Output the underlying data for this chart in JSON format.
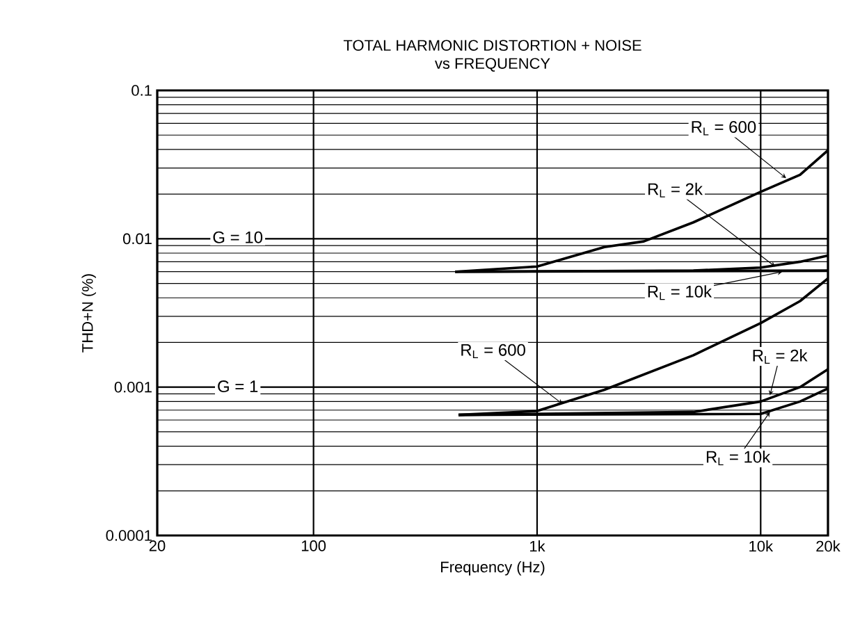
{
  "chart_data": {
    "type": "line",
    "title": "TOTAL HARMONIC DISTORTION + NOISE",
    "subtitle": "vs FREQUENCY",
    "xlabel": "Frequency (Hz)",
    "ylabel": "THD+N (%)",
    "log": "xy",
    "grid": true,
    "line_style": "solid",
    "marker": "none",
    "xlim": [
      20,
      20000
    ],
    "ylim": [
      0.0001,
      0.1
    ],
    "xticks": [
      20,
      {
        "value": 100,
        "label": "100"
      },
      {
        "value": 1000,
        "label": "1k"
      },
      {
        "value": 10000,
        "label": "10k"
      },
      {
        "value": 20000,
        "label": "20k"
      }
    ],
    "yticks": [
      0.0001,
      0.001,
      0.01,
      0.1
    ],
    "series": [
      {
        "color": "#000000",
        "x": [
          430,
          1000,
          2000,
          3000,
          5000,
          10000,
          15000,
          20000
        ],
        "values": [
          0.006,
          0.0065,
          0.0088,
          0.0096,
          0.0129,
          0.0207,
          0.027,
          0.0395
        ]
      },
      {
        "color": "#000000",
        "x": [
          430,
          5000,
          10000,
          15000,
          20000
        ],
        "values": [
          0.006,
          0.0061,
          0.0064,
          0.007,
          0.0077
        ]
      },
      {
        "color": "#000000",
        "x": [
          430,
          20000
        ],
        "values": [
          0.006,
          0.0061
        ]
      },
      {
        "color": "#000000",
        "x": [
          445,
          1000,
          2000,
          5000,
          10000,
          15000,
          20000
        ],
        "values": [
          0.00065,
          0.00069,
          0.00096,
          0.00164,
          0.0027,
          0.0038,
          0.0054
        ]
      },
      {
        "color": "#000000",
        "x": [
          445,
          5000,
          10000,
          15000,
          20000
        ],
        "values": [
          0.00065,
          0.00068,
          0.0008,
          0.001,
          0.00132
        ]
      },
      {
        "color": "#000000",
        "x": [
          445,
          10000,
          15000,
          20000
        ],
        "values": [
          0.00065,
          0.00066,
          0.0008,
          0.00098
        ]
      }
    ],
    "annotations": [
      "G = 10",
      "G = 1",
      {
        "text": "R$_{L}$ = 600",
        "x": 13000,
        "y": 0.0256
      },
      {
        "text": "R$_{L}$ = 2k",
        "x": 11600,
        "y": 0.0065
      },
      {
        "text": "R$_{L}$ = 10k",
        "x": 12500,
        "y": 0.006
      },
      {
        "text": "R$_{L}$ = 600",
        "x": 1300,
        "y": 0.00077
      },
      {
        "text": "R$_{L}$ = 2k",
        "x": 11000,
        "y": 0.00088
      },
      {
        "text": "R$_{L}$ = 10k",
        "x": 11000,
        "y": 0.00068
      }
    ]
  }
}
